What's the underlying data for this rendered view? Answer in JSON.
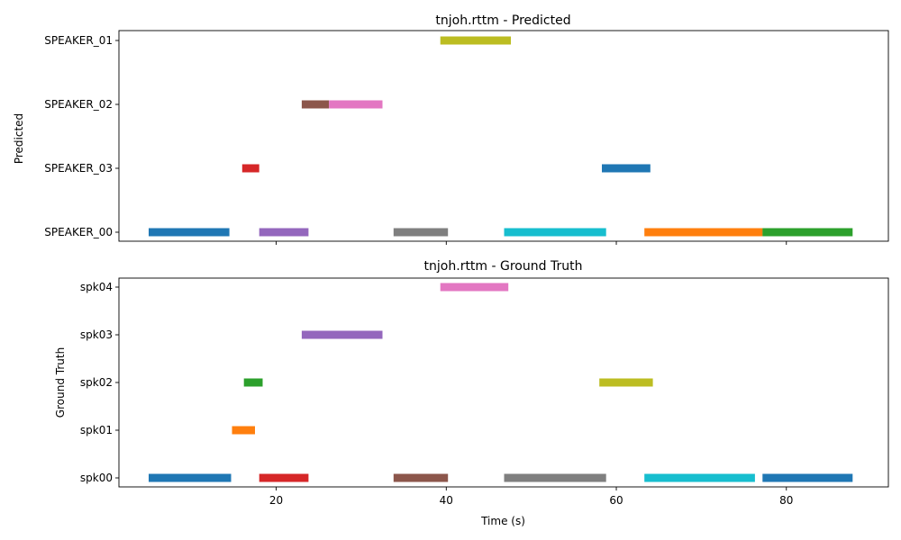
{
  "chart_data": [
    {
      "type": "timeline",
      "title": "tnjoh.rttm - Predicted",
      "ylabel": "Predicted",
      "xlabel": "",
      "xlim": [
        1.5,
        92
      ],
      "xticks": [
        20,
        40,
        60,
        80
      ],
      "show_xtick_labels": false,
      "categories": [
        "SPEAKER_00",
        "SPEAKER_03",
        "SPEAKER_02",
        "SPEAKER_01"
      ],
      "segments": [
        {
          "speaker": "SPEAKER_00",
          "start": 5.0,
          "end": 14.5,
          "color": "#1f77b4"
        },
        {
          "speaker": "SPEAKER_03",
          "start": 16.0,
          "end": 18.0,
          "color": "#d62728"
        },
        {
          "speaker": "SPEAKER_00",
          "start": 18.0,
          "end": 23.8,
          "color": "#9467bd"
        },
        {
          "speaker": "SPEAKER_02",
          "start": 23.0,
          "end": 26.2,
          "color": "#8c564b"
        },
        {
          "speaker": "SPEAKER_02",
          "start": 26.2,
          "end": 32.5,
          "color": "#e377c2"
        },
        {
          "speaker": "SPEAKER_00",
          "start": 33.8,
          "end": 40.2,
          "color": "#7f7f7f"
        },
        {
          "speaker": "SPEAKER_01",
          "start": 39.3,
          "end": 47.6,
          "color": "#bcbd22"
        },
        {
          "speaker": "SPEAKER_00",
          "start": 46.8,
          "end": 58.8,
          "color": "#17becf"
        },
        {
          "speaker": "SPEAKER_03",
          "start": 58.3,
          "end": 64.0,
          "color": "#1f77b4"
        },
        {
          "speaker": "SPEAKER_00",
          "start": 63.3,
          "end": 77.2,
          "color": "#ff7f0e"
        },
        {
          "speaker": "SPEAKER_00",
          "start": 77.2,
          "end": 87.8,
          "color": "#2ca02c"
        }
      ]
    },
    {
      "type": "timeline",
      "title": "tnjoh.rttm - Ground Truth",
      "ylabel": "Ground Truth",
      "xlabel": "Time (s)",
      "xlim": [
        1.5,
        92
      ],
      "xticks": [
        20,
        40,
        60,
        80
      ],
      "show_xtick_labels": true,
      "categories": [
        "spk00",
        "spk01",
        "spk02",
        "spk03",
        "spk04"
      ],
      "segments": [
        {
          "speaker": "spk00",
          "start": 5.0,
          "end": 14.7,
          "color": "#1f77b4"
        },
        {
          "speaker": "spk01",
          "start": 14.8,
          "end": 17.5,
          "color": "#ff7f0e"
        },
        {
          "speaker": "spk02",
          "start": 16.2,
          "end": 18.4,
          "color": "#2ca02c"
        },
        {
          "speaker": "spk00",
          "start": 18.0,
          "end": 23.8,
          "color": "#d62728"
        },
        {
          "speaker": "spk03",
          "start": 23.0,
          "end": 32.5,
          "color": "#9467bd"
        },
        {
          "speaker": "spk00",
          "start": 33.8,
          "end": 40.2,
          "color": "#8c564b"
        },
        {
          "speaker": "spk04",
          "start": 39.3,
          "end": 47.3,
          "color": "#e377c2"
        },
        {
          "speaker": "spk00",
          "start": 46.8,
          "end": 58.8,
          "color": "#7f7f7f"
        },
        {
          "speaker": "spk02",
          "start": 58.0,
          "end": 64.3,
          "color": "#bcbd22"
        },
        {
          "speaker": "spk00",
          "start": 63.3,
          "end": 76.3,
          "color": "#17becf"
        },
        {
          "speaker": "spk00",
          "start": 77.2,
          "end": 87.8,
          "color": "#1f77b4"
        }
      ]
    }
  ]
}
